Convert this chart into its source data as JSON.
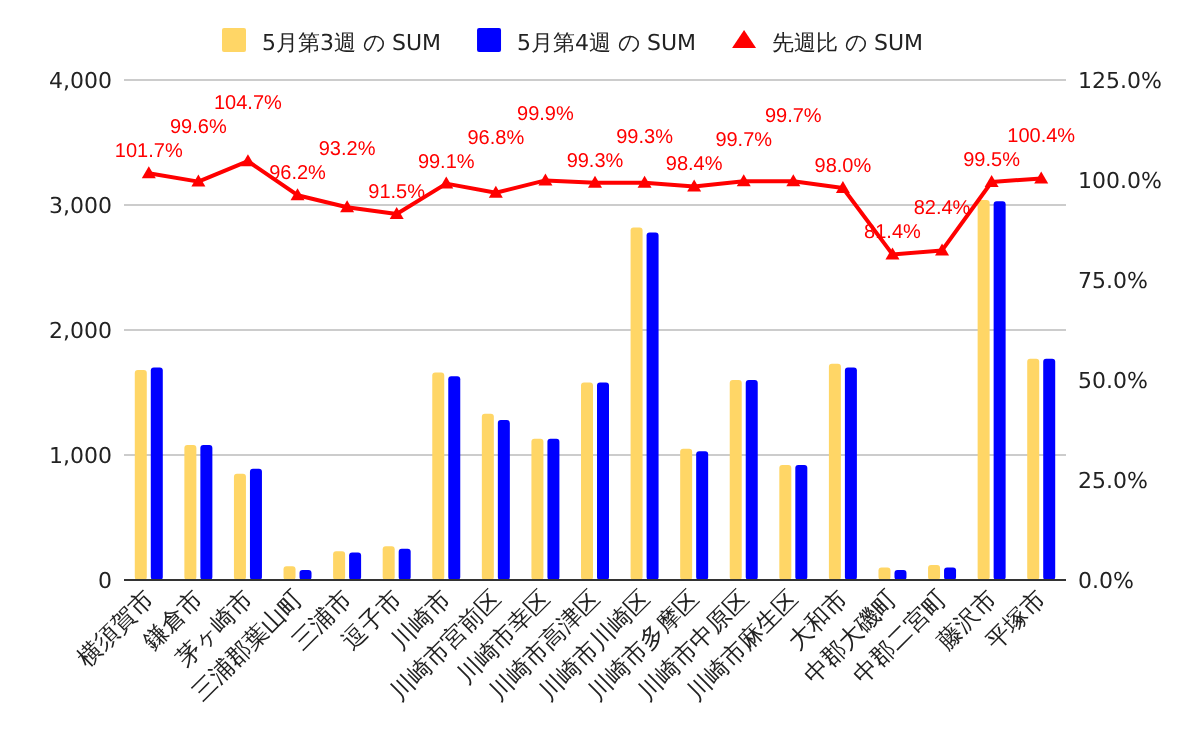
{
  "chart_data": {
    "type": "bar",
    "categories": [
      "横須賀市",
      "鎌倉市",
      "茅ヶ崎市",
      "三浦郡葉山町",
      "三浦市",
      "逗子市",
      "川崎市",
      "川崎市宮前区",
      "川崎市幸区",
      "川崎市高津区",
      "川崎市川崎区",
      "川崎市多摩区",
      "川崎市中原区",
      "川崎市麻生区",
      "大和市",
      "中郡大磯町",
      "中郡二宮町",
      "藤沢市",
      "平塚市"
    ],
    "series": [
      {
        "name": "5月第3週 の SUM",
        "color": "#ffd666",
        "values": [
          1680,
          1080,
          850,
          110,
          230,
          270,
          1660,
          1330,
          1130,
          1580,
          2820,
          1050,
          1600,
          920,
          1730,
          100,
          120,
          3040,
          1770
        ]
      },
      {
        "name": "5月第4週 の SUM",
        "color": "#0000ff",
        "values": [
          1700,
          1080,
          890,
          80,
          220,
          250,
          1630,
          1280,
          1130,
          1580,
          2780,
          1030,
          1600,
          920,
          1700,
          80,
          100,
          3030,
          1770
        ]
      },
      {
        "name": "先週比 の SUM",
        "type": "line",
        "axis": "y2",
        "color": "#ff0000",
        "marker": "triangle",
        "values": [
          101.7,
          99.6,
          104.7,
          96.2,
          93.2,
          91.5,
          99.1,
          96.8,
          99.9,
          99.3,
          99.3,
          98.4,
          99.7,
          99.7,
          98.0,
          81.4,
          82.4,
          99.5,
          100.4
        ],
        "value_labels": [
          "101.7%",
          "99.6%",
          "104.7%",
          "96.2%",
          "93.2%",
          "91.5%",
          "99.1%",
          "96.8%",
          "99.9%",
          "99.3%",
          "99.3%",
          "98.4%",
          "99.7%",
          "99.7%",
          "98.0%",
          "81.4%",
          "82.4%",
          "99.5%",
          "100.4%"
        ]
      }
    ],
    "ylim": [
      0,
      4000
    ],
    "yticks": [
      0,
      {
        "value": 1000,
        "label": "1,000"
      },
      {
        "value": 2000,
        "label": "2,000"
      },
      {
        "value": 3000,
        "label": "3,000"
      },
      {
        "value": 4000,
        "label": "4,000"
      }
    ],
    "y2lim": [
      0,
      125
    ],
    "y2ticks": [
      {
        "value": 0,
        "label": "0.0%"
      },
      {
        "value": 25,
        "label": "25.0%"
      },
      {
        "value": 50,
        "label": "50.0%"
      },
      {
        "value": 75,
        "label": "75.0%"
      },
      {
        "value": 100,
        "label": "100.0%"
      },
      {
        "value": 125,
        "label": "125.0%"
      }
    ],
    "grid": true,
    "legend": "top"
  }
}
